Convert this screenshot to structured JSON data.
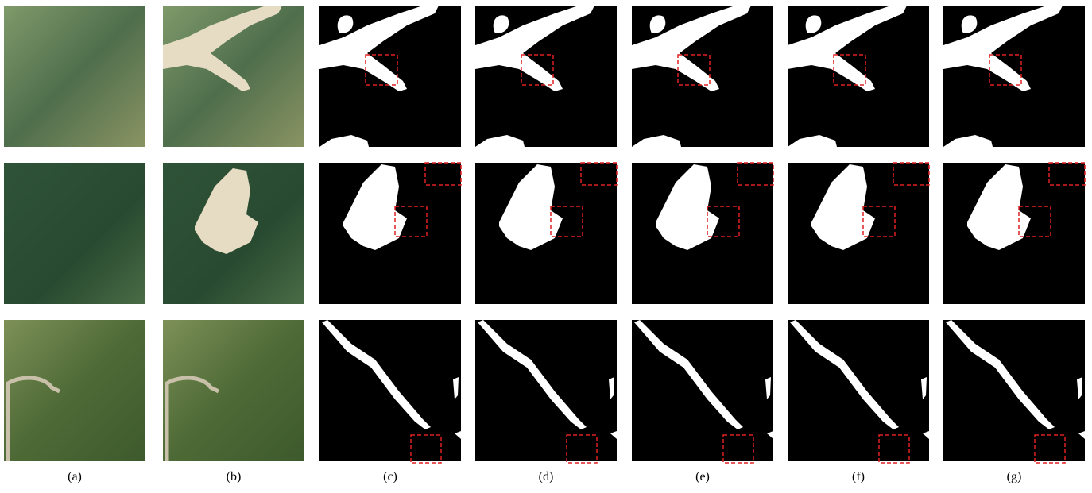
{
  "figure": {
    "labels": [
      "(a)",
      "(b)",
      "(c)",
      "(d)",
      "(e)",
      "(f)",
      "(g)"
    ]
  }
}
